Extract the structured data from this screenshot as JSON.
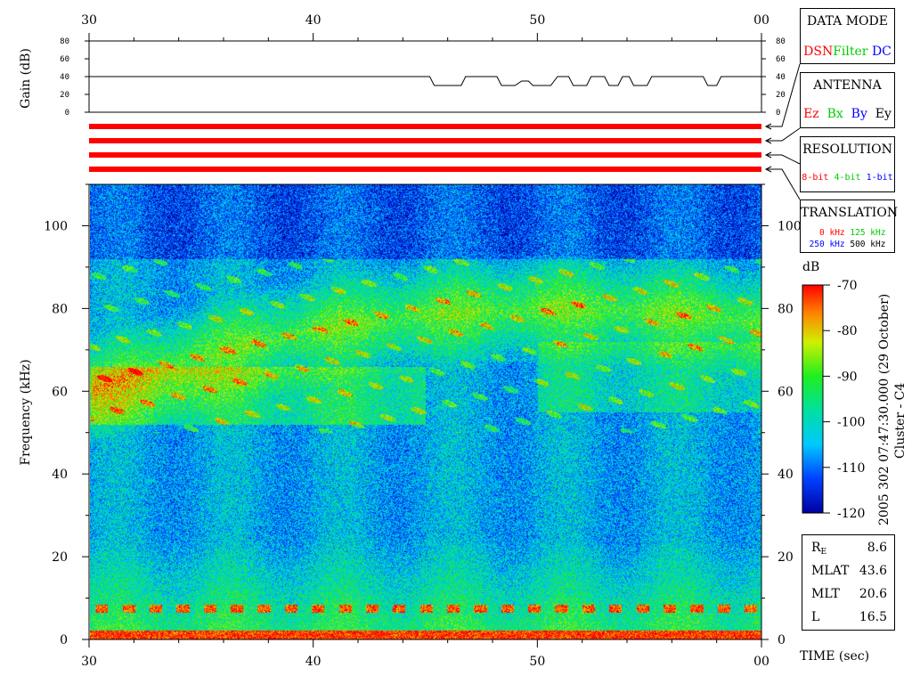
{
  "colors": {
    "red": "#ff0000",
    "green": "#00cc00",
    "blue": "#0000ff",
    "black": "#000000",
    "trace_red": "#ff0000"
  },
  "chart_data": [
    {
      "type": "line",
      "ylabel": "Gain (dB)",
      "xlim": [
        30,
        60
      ],
      "ylim": [
        0,
        80
      ],
      "x_ticks": [
        "30",
        "40",
        "50",
        "00"
      ],
      "y_ticks": [
        "0",
        "20",
        "40",
        "60",
        "80"
      ],
      "series": [
        {
          "x": [
            30,
            45.2,
            45.4,
            46.6,
            46.8,
            48.2,
            48.4,
            49.0,
            49.3,
            49.6,
            49.8,
            50.6,
            50.9,
            51.4,
            51.6,
            52.2,
            52.4,
            53.0,
            53.2,
            53.6,
            53.8,
            54.1,
            54.3,
            54.9,
            55.1,
            57.4,
            57.6,
            58.0,
            58.2,
            60
          ],
          "y": [
            40,
            40,
            30,
            30,
            40,
            40,
            30,
            30,
            35,
            35,
            30,
            30,
            40,
            40,
            30,
            30,
            40,
            40,
            30,
            30,
            40,
            40,
            30,
            30,
            40,
            40,
            30,
            30,
            40,
            40
          ]
        }
      ]
    },
    {
      "type": "heatmap",
      "xlabel": "TIME (sec)",
      "ylabel": "Frequency (kHz)",
      "xlim": [
        30,
        60
      ],
      "ylim": [
        0,
        110
      ],
      "x_ticks": [
        "30",
        "40",
        "50",
        "00"
      ],
      "y_ticks": [
        "0",
        "20",
        "40",
        "60",
        "80",
        "100"
      ],
      "colorbar": {
        "label": "dB",
        "range": [
          -120,
          -70
        ],
        "ticks": [
          "-70",
          "-80",
          "-90",
          "-100",
          "-110",
          "-120"
        ]
      },
      "features": [
        {
          "name": "low-frequency band",
          "freq_khz": 1
        },
        {
          "name": "periodic dashed emission",
          "freq_khz": 7.5
        },
        {
          "name": "chorus arc",
          "freq_khz_range": [
            55,
            90
          ],
          "peak_time_sec": 51
        }
      ]
    }
  ],
  "panels": {
    "data_mode": {
      "title": "DATA MODE",
      "items": [
        "DSN",
        "Filter",
        "DC"
      ]
    },
    "antenna": {
      "title": "ANTENNA",
      "items": [
        "Ez",
        "Bx",
        "By",
        "Ey"
      ]
    },
    "resolution": {
      "title": "RESOLUTION",
      "items": [
        "8-bit",
        "4-bit",
        "1-bit"
      ]
    },
    "translation": {
      "title": "TRANSLATION",
      "items": [
        "0 kHz",
        "125 kHz",
        "250 kHz",
        "500 kHz"
      ]
    }
  },
  "status_traces": {
    "count": 4,
    "color": "red"
  },
  "orbit": [
    {
      "label": "R",
      "sub": "E",
      "value": "8.6"
    },
    {
      "label": "MLAT",
      "sub": "",
      "value": "43.6"
    },
    {
      "label": "MLT",
      "sub": "",
      "value": "20.6"
    },
    {
      "label": "L",
      "sub": "",
      "value": "16.5"
    }
  ],
  "meta": {
    "date": "2005 302 07:47:30.000 (29 October)",
    "spacecraft": "Cluster - C4"
  }
}
